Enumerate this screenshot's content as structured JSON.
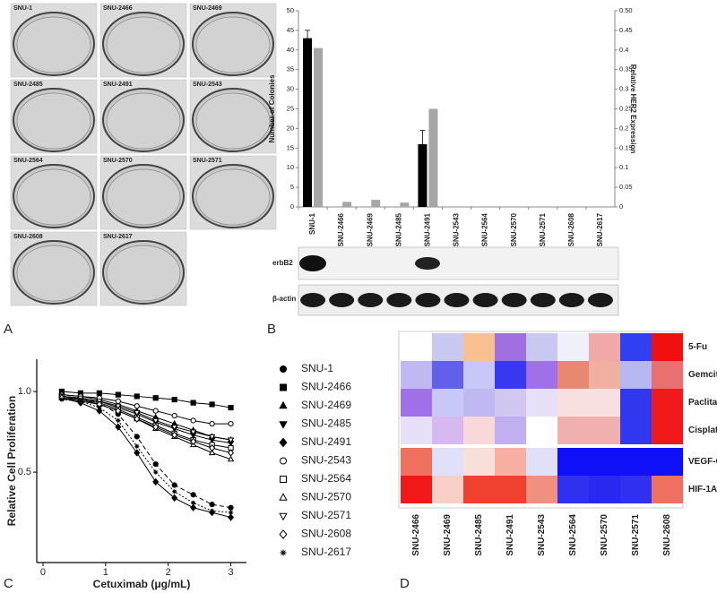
{
  "panel_labels": [
    "A",
    "B",
    "C",
    "D"
  ],
  "wells": {
    "labels": [
      "SNU-1",
      "SNU-2466",
      "SNU-2469",
      "SNU-2485",
      "SNU-2491",
      "SNU-2543",
      "SNU-2564",
      "SNU-2570",
      "SNU-2571",
      "SNU-2608",
      "SNU-2617"
    ]
  },
  "blot": {
    "labels": [
      "erbB2",
      "β-actin"
    ]
  },
  "chart_data": [
    {
      "type": "bar",
      "categories": [
        "SNU-1",
        "SNU-2466",
        "SNU-2469",
        "SNU-2485",
        "SNU-2491",
        "SNU-2543",
        "SNU-2564",
        "SNU-2570",
        "SNU-2571",
        "SNU-2608",
        "SNU-2617"
      ],
      "ylabel": "Number of Colonies",
      "y2label": "Relative HER2 Expression",
      "ylim": [
        0,
        50
      ],
      "yticks": [
        0,
        5,
        10,
        15,
        20,
        25,
        30,
        35,
        40,
        45,
        50
      ],
      "y2lim": [
        0,
        0.5
      ],
      "y2ticks": [
        0,
        0.05,
        0.1,
        0.15,
        0.2,
        0.25,
        0.3,
        0.35,
        0.4,
        0.45,
        {
          "value": 0.5,
          "label": "0.50"
        }
      ],
      "series": [
        {
          "color": "#000000",
          "values": [
            43,
            0,
            0,
            0,
            16,
            0,
            0,
            0,
            0,
            0,
            0
          ],
          "errors": [
            2,
            null,
            null,
            null,
            3.5,
            null,
            null,
            null,
            null,
            null,
            null
          ]
        },
        {
          "color": "#a6a6a6",
          "axis": "y2",
          "values": [
            0.405,
            0.013,
            0.018,
            0.011,
            0.25,
            0,
            0,
            0,
            0,
            0,
            0
          ]
        }
      ]
    },
    {
      "type": "line",
      "xlabel": "Cetuximab (μg/mL)",
      "ylabel": "Relative Cell Proliferation",
      "x": [
        0.3,
        0.6,
        0.9,
        1.2,
        1.5,
        1.8,
        2.1,
        2.4,
        2.7,
        3.0
      ],
      "xlim": [
        -0.1,
        3.25
      ],
      "xticks": [
        0,
        1,
        2,
        3
      ],
      "ylim": [
        -0.06,
        1.2
      ],
      "yticks": [
        0.5,
        {
          "value": 1,
          "label": "1.0"
        }
      ],
      "series": [
        {
          "name": "SNU-1",
          "color": "#000000",
          "marker": "circle",
          "filled": true,
          "line_style": "dashed",
          "values": [
            0.97,
            0.96,
            0.93,
            0.86,
            0.72,
            0.55,
            0.42,
            0.36,
            0.3,
            0.28
          ]
        },
        {
          "name": "SNU-2466",
          "color": "#000000",
          "marker": "square",
          "filled": true,
          "line_style": "solid",
          "values": [
            1.0,
            0.99,
            0.99,
            0.98,
            0.97,
            0.96,
            0.95,
            0.93,
            0.92,
            0.9
          ]
        },
        {
          "name": "SNU-2469",
          "color": "#000000",
          "marker": "triangle-up",
          "filled": true,
          "line_style": "solid",
          "values": [
            0.98,
            0.97,
            0.95,
            0.92,
            0.88,
            0.84,
            0.8,
            0.76,
            0.72,
            0.7
          ]
        },
        {
          "name": "SNU-2485",
          "color": "#000000",
          "marker": "triangle-down",
          "filled": true,
          "line_style": "solid",
          "values": [
            0.97,
            0.96,
            0.94,
            0.9,
            0.86,
            0.81,
            0.77,
            0.73,
            0.7,
            0.68
          ]
        },
        {
          "name": "SNU-2491",
          "color": "#000000",
          "marker": "diamond",
          "filled": true,
          "line_style": "solid",
          "values": [
            0.96,
            0.93,
            0.88,
            0.78,
            0.62,
            0.44,
            0.34,
            0.28,
            0.25,
            0.22
          ]
        },
        {
          "name": "SNU-2543",
          "color": "#000000",
          "marker": "circle",
          "filled": false,
          "line_style": "solid",
          "values": [
            0.98,
            0.97,
            0.96,
            0.94,
            0.91,
            0.88,
            0.85,
            0.82,
            0.8,
            0.8
          ]
        },
        {
          "name": "SNU-2564",
          "color": "#000000",
          "marker": "square",
          "filled": false,
          "line_style": "solid",
          "values": [
            0.97,
            0.95,
            0.93,
            0.89,
            0.84,
            0.79,
            0.74,
            0.7,
            0.67,
            0.65
          ]
        },
        {
          "name": "SNU-2570",
          "color": "#000000",
          "marker": "triangle-up",
          "filled": false,
          "line_style": "solid",
          "values": [
            0.96,
            0.95,
            0.92,
            0.88,
            0.83,
            0.77,
            0.72,
            0.67,
            0.62,
            0.58
          ]
        },
        {
          "name": "SNU-2571",
          "color": "#000000",
          "marker": "triangle-down",
          "filled": false,
          "line_style": "solid",
          "values": [
            0.97,
            0.96,
            0.94,
            0.91,
            0.87,
            0.82,
            0.78,
            0.75,
            0.72,
            0.7
          ]
        },
        {
          "name": "SNU-2608",
          "color": "#000000",
          "marker": "diamond",
          "filled": false,
          "line_style": "solid",
          "values": [
            0.96,
            0.94,
            0.92,
            0.88,
            0.83,
            0.78,
            0.73,
            0.69,
            0.65,
            0.62
          ]
        },
        {
          "name": "SNU-2617",
          "color": "#000000",
          "marker": "asterisk",
          "filled": false,
          "line_style": "dotted",
          "values": [
            0.95,
            0.94,
            0.9,
            0.82,
            0.66,
            0.5,
            0.38,
            0.31,
            0.26,
            0.25
          ]
        }
      ]
    },
    {
      "type": "heatmap",
      "x": [
        "SNU-2466",
        "SNU-2469",
        "SNU-2485",
        "SNU-2491",
        "SNU-2543",
        "SNU-2564",
        "SNU-2570",
        "SNU-2571",
        "SNU-2608"
      ],
      "y": [
        "5-Fu",
        "Gemcitabine",
        "Paclitaxel",
        "Cisplatin",
        "VEGF-C",
        "HIF-1A"
      ],
      "colors": [
        [
          null,
          "#c8c8f0",
          "#f8c090",
          "#a070e0",
          "#c8c8f0",
          "#f0f0fa",
          "#f0a8a8",
          "#3040f0",
          "#f01010"
        ],
        [
          "#c0b8f0",
          "#6060e8",
          "#c8c8f8",
          "#3838f0",
          "#a070e8",
          "#e88870",
          "#f0b0a0",
          "#b8b8f0",
          "#e87070"
        ],
        [
          "#a070e8",
          "#c8c8f8",
          "#c0b8f0",
          "#d0c8f0",
          "#e8e0f8",
          "#f8e0e0",
          "#f8e0e0",
          "#3038f0",
          "#f01818"
        ],
        [
          "#e8e0f8",
          "#d8b8f0",
          "#f8d8d8",
          "#c0b0f0",
          "#ffffff",
          "#f0b0b0",
          "#f0b0b0",
          "#3038f0",
          "#f01818"
        ],
        [
          "#f07060",
          "#e0e0f8",
          "#f8e0d8",
          "#f8b0a0",
          "#e0e0f8",
          "#1010f8",
          "#1010f8",
          "#1010f8",
          "#1010f8"
        ],
        [
          "#f01818",
          "#f8d0c8",
          "#f04030",
          "#f04030",
          "#f09080",
          "#3030f0",
          "#2828f0",
          "#3030f0",
          "#f07060"
        ]
      ]
    }
  ]
}
